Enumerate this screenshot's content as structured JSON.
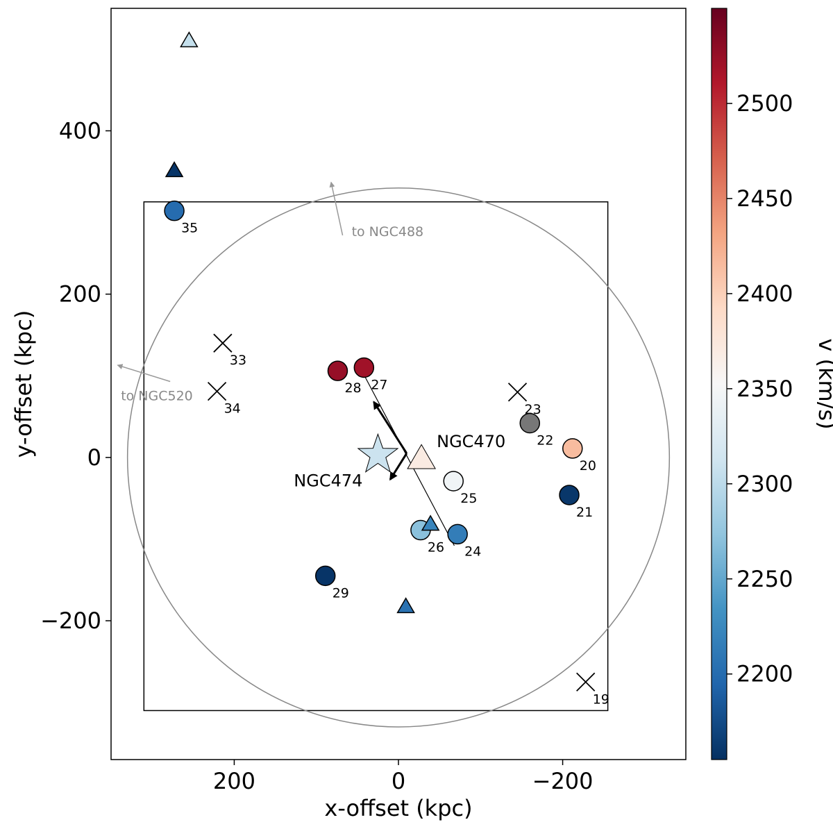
{
  "chart_data": {
    "type": "scatter",
    "xlabel": "x-offset (kpc)",
    "ylabel": "y-offset (kpc)",
    "xlim": [
      350,
      -350
    ],
    "ylim": [
      -370,
      550
    ],
    "x_ticks": [
      {
        "v": 200,
        "label": "200"
      },
      {
        "v": 0,
        "label": "0"
      },
      {
        "v": -200,
        "label": "−200"
      }
    ],
    "y_ticks": [
      {
        "v": 400,
        "label": "400"
      },
      {
        "v": 200,
        "label": "200"
      },
      {
        "v": 0,
        "label": "0"
      },
      {
        "v": -200,
        "label": "−200"
      }
    ],
    "colorbar": {
      "label": "v (km/s)",
      "vmin": 2155,
      "vmax": 2550,
      "colormap": "RdBu_r",
      "ticks": [
        {
          "v": 2200,
          "label": "2200"
        },
        {
          "v": 2250,
          "label": "2250"
        },
        {
          "v": 2300,
          "label": "2300"
        },
        {
          "v": 2350,
          "label": "2350"
        },
        {
          "v": 2400,
          "label": "2400"
        },
        {
          "v": 2450,
          "label": "2450"
        },
        {
          "v": 2500,
          "label": "2500"
        }
      ]
    },
    "box": {
      "x": [
        310,
        -255
      ],
      "y": [
        -310,
        313
      ]
    },
    "circle": {
      "x": 0,
      "y": 0,
      "r": 330
    },
    "galaxies": [
      {
        "id": "ngc474",
        "name": "NGC474",
        "x": 25,
        "y": 3,
        "v": 2310,
        "marker": "star"
      },
      {
        "id": "ngc470",
        "name": "NGC470",
        "x": -28,
        "y": -2,
        "v": 2370,
        "marker": "triangle-big"
      }
    ],
    "points": [
      {
        "id": "19",
        "label": "19",
        "x": -228,
        "y": -275,
        "v": null,
        "marker": "x"
      },
      {
        "id": "20",
        "label": "20",
        "x": -212,
        "y": 11,
        "v": 2415,
        "marker": "circle"
      },
      {
        "id": "21",
        "label": "21",
        "x": -208,
        "y": -46,
        "v": 2160,
        "marker": "circle"
      },
      {
        "id": "22",
        "label": "22",
        "x": -160,
        "y": 42,
        "v": null,
        "marker": "circle-grey"
      },
      {
        "id": "23",
        "label": "23",
        "x": -145,
        "y": 80,
        "v": null,
        "marker": "x"
      },
      {
        "id": "24",
        "label": "24",
        "x": -72,
        "y": -94,
        "v": 2215,
        "marker": "circle"
      },
      {
        "id": "25",
        "label": "25",
        "x": -67,
        "y": -29,
        "v": 2345,
        "marker": "circle"
      },
      {
        "id": "26",
        "label": "26",
        "x": -27,
        "y": -89,
        "v": 2270,
        "marker": "circle"
      },
      {
        "id": "27",
        "label": "27",
        "x": 42,
        "y": 110,
        "v": 2520,
        "marker": "circle"
      },
      {
        "id": "28",
        "label": "28",
        "x": 74,
        "y": 106,
        "v": 2525,
        "marker": "circle"
      },
      {
        "id": "29",
        "label": "29",
        "x": 89,
        "y": -145,
        "v": 2158,
        "marker": "circle"
      },
      {
        "id": "33",
        "label": "33",
        "x": 214,
        "y": 140,
        "v": null,
        "marker": "x"
      },
      {
        "id": "34",
        "label": "34",
        "x": 221,
        "y": 81,
        "v": null,
        "marker": "x"
      },
      {
        "id": "35",
        "label": "35",
        "x": 273,
        "y": 302,
        "v": 2200,
        "marker": "circle"
      },
      {
        "id": "t1",
        "label": "",
        "x": 255,
        "y": 510,
        "v": 2305,
        "marker": "triangle"
      },
      {
        "id": "t2",
        "label": "",
        "x": 273,
        "y": 351,
        "v": 2158,
        "marker": "triangle"
      },
      {
        "id": "t3",
        "label": "",
        "x": -39,
        "y": -82,
        "v": 2222,
        "marker": "triangle"
      },
      {
        "id": "t4",
        "label": "",
        "x": -9,
        "y": -183,
        "v": 2205,
        "marker": "triangle"
      }
    ],
    "annotations": [
      {
        "id": "to-ngc488",
        "text": "to NGC488",
        "tail": [
          68,
          272
        ],
        "head": [
          82,
          337
        ],
        "text_at": [
          57,
          276
        ]
      },
      {
        "id": "to-ngc520",
        "text": "to NGC520",
        "tail": [
          278,
          93
        ],
        "head": [
          342,
          113
        ],
        "text_at": [
          338,
          75
        ]
      }
    ],
    "vectors": [
      {
        "id": "vector-up",
        "from": [
          -10,
          5
        ],
        "to": [
          30,
          68
        ]
      },
      {
        "id": "vector-down",
        "from": [
          -10,
          5
        ],
        "to": [
          10,
          -27
        ]
      }
    ],
    "connector": {
      "from": [
        44,
        105
      ],
      "to": [
        -68,
        -108
      ]
    }
  }
}
